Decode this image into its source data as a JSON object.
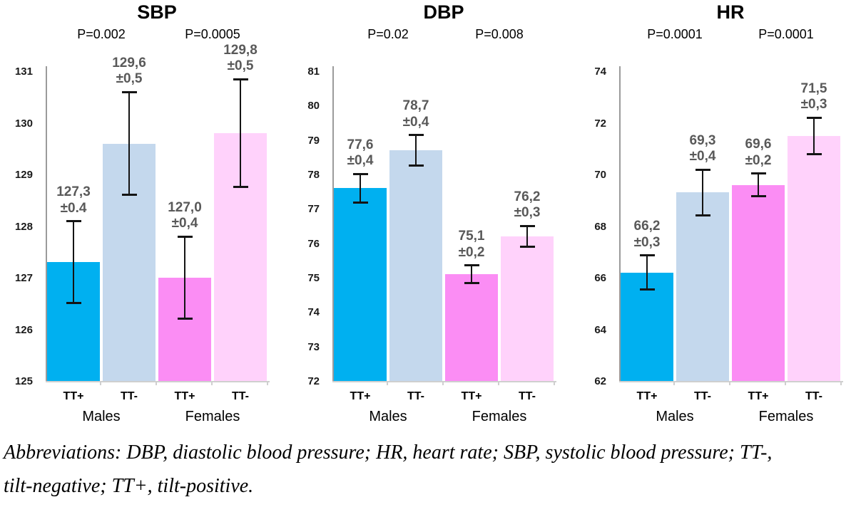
{
  "figure": {
    "caption": {
      "line1": "Abbreviations: DBP, diastolic blood pressure; HR, heart rate; SBP, systolic blood pressure; TT-,",
      "line2": "tilt-negative; TT+, tilt-positive."
    }
  },
  "colors": {
    "bars": [
      "#00B0F0",
      "#C4D8ED",
      "#FB8DF4",
      "#FFD2FB"
    ],
    "axis": "#9b9b9b",
    "baseline": "#cfcfcf",
    "error_bar": "#141414",
    "value_label": "#595959",
    "text": "#000000"
  },
  "chart_data": [
    {
      "type": "bar",
      "title": "SBP",
      "p_values": [
        "P=0.002",
        "P=0.0005"
      ],
      "ylim": [
        125,
        131
      ],
      "ytick_step": 1,
      "grid": false,
      "legend": false,
      "groups": [
        "Males",
        "Females"
      ],
      "categories": [
        "TT+",
        "TT-",
        "TT+",
        "TT-"
      ],
      "values": [
        127.3,
        129.6,
        127.0,
        129.8
      ],
      "value_labels": [
        [
          "127,3",
          "±0.4"
        ],
        [
          "129,6",
          "±0,5"
        ],
        [
          "127,0",
          "±0,4"
        ],
        [
          "129,8",
          "±0,5"
        ]
      ],
      "whisker_extents": [
        0.8,
        1.0,
        0.8,
        1.05
      ]
    },
    {
      "type": "bar",
      "title": "DBP",
      "p_values": [
        "P=0.02",
        "P=0.008"
      ],
      "ylim": [
        72,
        81
      ],
      "ytick_step": 1,
      "grid": false,
      "legend": false,
      "groups": [
        "Males",
        "Females"
      ],
      "categories": [
        "TT+",
        "TT-",
        "TT+",
        "TT-"
      ],
      "values": [
        77.6,
        78.7,
        75.1,
        76.2
      ],
      "value_labels": [
        [
          "77,6",
          "±0,4"
        ],
        [
          "78,7",
          "±0,4"
        ],
        [
          "75,1",
          "±0,2"
        ],
        [
          "76,2",
          "±0,3"
        ]
      ],
      "whisker_extents": [
        0.42,
        0.45,
        0.27,
        0.32
      ]
    },
    {
      "type": "bar",
      "title": "HR",
      "p_values": [
        "P=0.0001",
        "P=0.0001"
      ],
      "ylim": [
        62,
        74
      ],
      "ytick_step": 2,
      "grid": false,
      "legend": false,
      "groups": [
        "Males",
        "Females"
      ],
      "categories": [
        "TT+",
        "TT-",
        "TT+",
        "TT-"
      ],
      "values": [
        66.2,
        69.3,
        69.6,
        71.5
      ],
      "value_labels": [
        [
          "66,2",
          "±0,3"
        ],
        [
          "69,3",
          "±0,4"
        ],
        [
          "69,6",
          "±0,2"
        ],
        [
          "71,5",
          "±0,3"
        ]
      ],
      "whisker_extents": [
        0.68,
        0.9,
        0.45,
        0.72
      ]
    }
  ]
}
